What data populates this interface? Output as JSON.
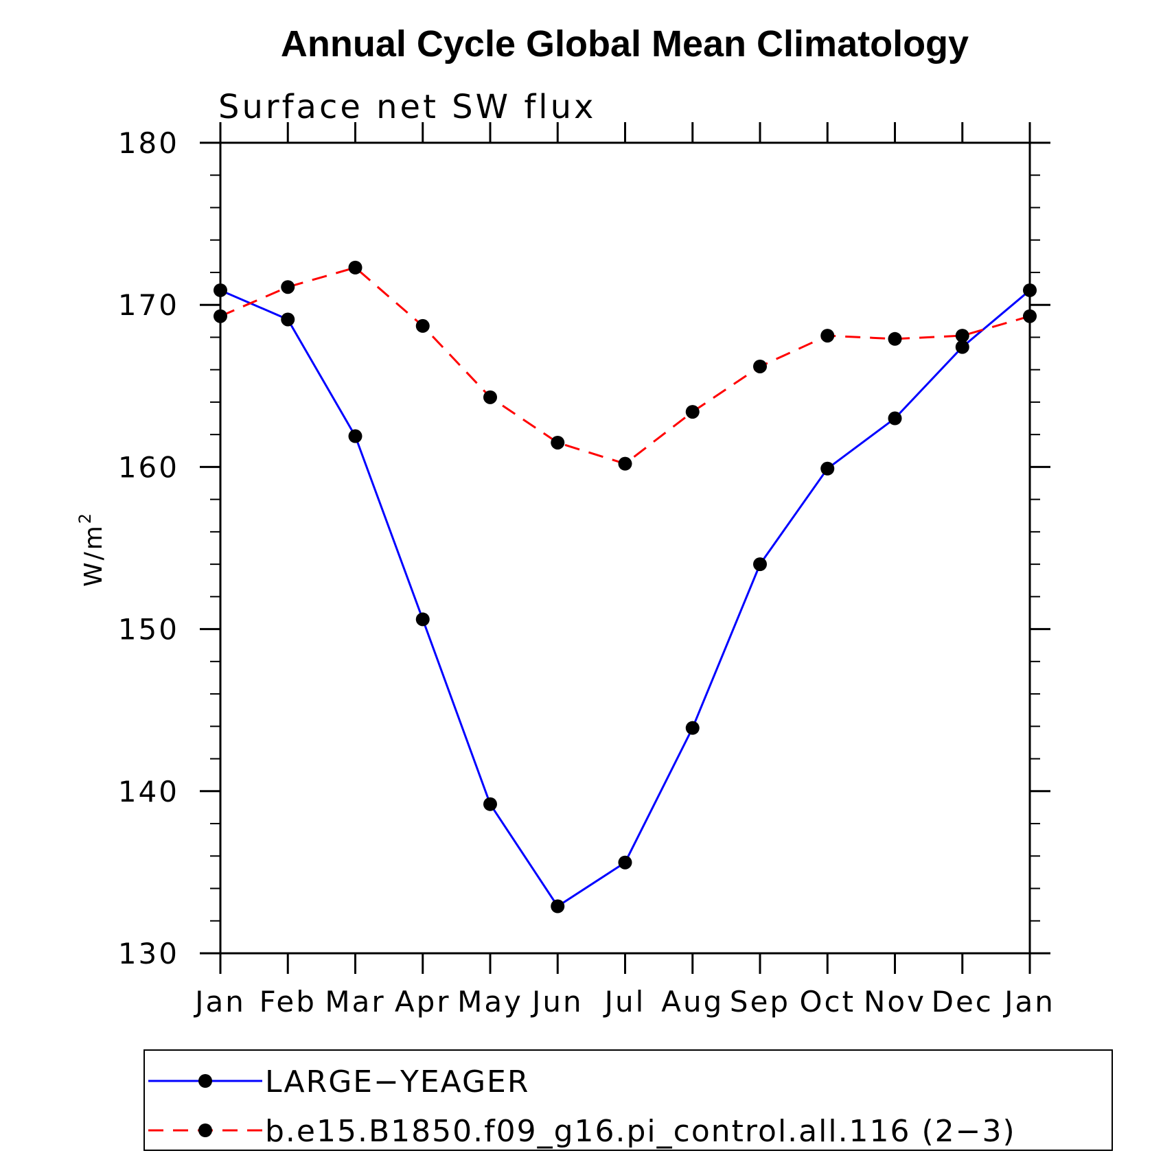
{
  "chart_data": {
    "type": "line",
    "title": "Annual Cycle Global Mean Climatology",
    "subtitle": "Surface net SW flux",
    "ylabel": "W/m",
    "ylabel_superscript": "2",
    "ylim": [
      130,
      180
    ],
    "yticks": [
      130,
      140,
      150,
      160,
      170,
      180
    ],
    "categories": [
      "Jan",
      "Feb",
      "Mar",
      "Apr",
      "May",
      "Jun",
      "Jul",
      "Aug",
      "Sep",
      "Oct",
      "Nov",
      "Dec",
      "Jan"
    ],
    "legend_position": "bottom",
    "series": [
      {
        "name": "LARGE−YEAGER",
        "color": "#0000ff",
        "style": "solid",
        "marker": "filled-circle",
        "values": [
          170.9,
          169.1,
          161.9,
          150.6,
          139.2,
          132.9,
          135.6,
          143.9,
          154.0,
          159.9,
          163.0,
          167.4,
          170.9
        ]
      },
      {
        "name": "b.e15.B1850.f09_g16.pi_control.all.116 (2−3)",
        "color": "#ff0000",
        "style": "dashed",
        "marker": "filled-circle",
        "values": [
          169.3,
          171.1,
          172.3,
          168.7,
          164.3,
          161.5,
          160.2,
          163.4,
          166.2,
          168.1,
          167.9,
          168.1,
          169.3
        ]
      }
    ]
  }
}
